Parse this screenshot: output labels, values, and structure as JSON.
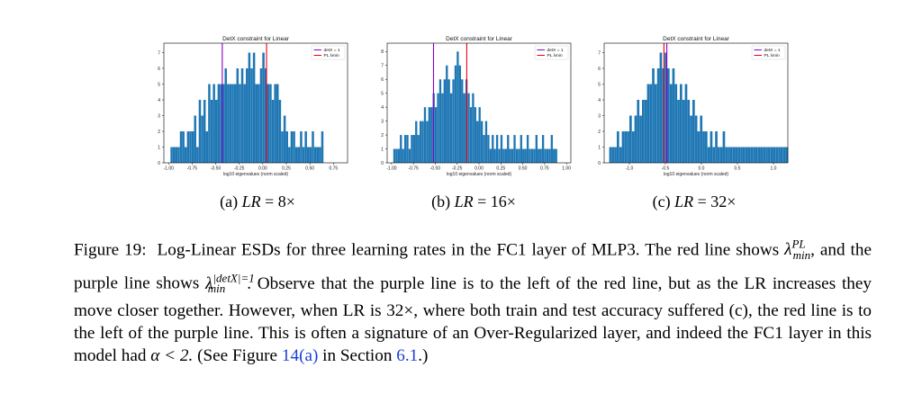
{
  "chart_data": [
    {
      "type": "bar",
      "title": "DetX constraint for Linear",
      "xlabel": "log10 eigenvalues (norm scaled)",
      "xlim": [
        -1.05,
        0.9
      ],
      "ylim": [
        0,
        7.6
      ],
      "xticks": [
        -1.0,
        -0.75,
        -0.5,
        -0.25,
        0.0,
        0.25,
        0.5,
        0.75
      ],
      "xtick_labels": [
        "-1.00",
        "-0.75",
        "-0.50",
        "-0.25",
        "0.00",
        "0.25",
        "0.50",
        "0.75"
      ],
      "yticks": [
        0,
        1,
        2,
        3,
        4,
        5,
        6,
        7
      ],
      "bin_start": -0.98,
      "bin_width": 0.025,
      "values": [
        1,
        1,
        1,
        1,
        2,
        2,
        1,
        2,
        2,
        2,
        3,
        1,
        4,
        3,
        4,
        2,
        5,
        4,
        5,
        4,
        5,
        5,
        5,
        6,
        5,
        5,
        5,
        5,
        6,
        5,
        6,
        5,
        6,
        7,
        6,
        7,
        5,
        5,
        6,
        7,
        6,
        5,
        5,
        4,
        5,
        5,
        4,
        2,
        3,
        2,
        1,
        2,
        2,
        1,
        1,
        2,
        1,
        2,
        1,
        1,
        2,
        1,
        1,
        1,
        2
      ],
      "vlines": [
        {
          "label": "detX = 1",
          "x": -0.43,
          "color": "#8b00c8"
        },
        {
          "label": "PL λmin",
          "x": 0.04,
          "color": "#e8001c"
        }
      ],
      "legend": "top-right",
      "color": "#1f77b4"
    },
    {
      "type": "bar",
      "title": "DetX constraint for Linear",
      "xlabel": "log10 eigenvalues (norm scaled)",
      "xlim": [
        -1.05,
        1.05
      ],
      "ylim": [
        0,
        8.6
      ],
      "xticks": [
        -1.0,
        -0.75,
        -0.5,
        -0.25,
        0.0,
        0.25,
        0.5,
        0.75,
        1.0
      ],
      "xtick_labels": [
        "-1.00",
        "-0.75",
        "-0.50",
        "-0.25",
        "0.00",
        "0.25",
        "0.50",
        "0.75",
        "1.00"
      ],
      "yticks": [
        0,
        1,
        2,
        3,
        4,
        5,
        6,
        7,
        8
      ],
      "bin_start": -0.98,
      "bin_width": 0.025,
      "values": [
        1,
        1,
        1,
        2,
        1,
        2,
        2,
        1,
        2,
        2,
        3,
        2,
        3,
        3,
        4,
        3,
        4,
        4,
        5,
        4,
        5,
        6,
        5,
        6,
        7,
        6,
        5,
        6,
        7,
        8,
        7,
        6,
        5,
        6,
        5,
        4,
        5,
        4,
        3,
        4,
        3,
        2,
        3,
        2,
        1,
        2,
        1,
        2,
        1,
        2,
        1,
        1,
        2,
        1,
        1,
        2,
        1,
        1,
        2,
        1,
        1,
        2,
        1,
        1,
        1,
        2,
        1,
        1,
        2,
        1,
        1,
        1,
        2,
        1,
        1
      ],
      "vlines": [
        {
          "label": "detX = 1",
          "x": -0.52,
          "color": "#8b00c8"
        },
        {
          "label": "PL λmin",
          "x": -0.14,
          "color": "#e8001c"
        }
      ],
      "legend": "top-right",
      "color": "#1f77b4"
    },
    {
      "type": "bar",
      "title": "DetX constraint for Linear",
      "xlabel": "log10 eigenvalues (norm scaled)",
      "xlim": [
        -1.35,
        1.2
      ],
      "ylim": [
        0,
        7.6
      ],
      "xticks": [
        -1.0,
        -0.5,
        0.0,
        0.5,
        1.0
      ],
      "xtick_labels": [
        "-1.0",
        "-0.5",
        "0.0",
        "0.5",
        "1.0"
      ],
      "yticks": [
        0,
        1,
        2,
        3,
        4,
        5,
        6,
        7
      ],
      "bin_start": -1.28,
      "bin_width": 0.035,
      "values": [
        1,
        1,
        1,
        2,
        1,
        2,
        2,
        2,
        3,
        2,
        3,
        4,
        3,
        4,
        4,
        5,
        5,
        6,
        5,
        6,
        7,
        6,
        7,
        6,
        5,
        6,
        5,
        4,
        5,
        4,
        5,
        4,
        3,
        4,
        3,
        2,
        3,
        2,
        2,
        1,
        2,
        1,
        2,
        1,
        1,
        2,
        1,
        1,
        1,
        1,
        1,
        1,
        1,
        1,
        1,
        1,
        1,
        1,
        1,
        1,
        1,
        1,
        1,
        1,
        1,
        1,
        1,
        1,
        1,
        1,
        1
      ],
      "vlines": [
        {
          "label": "detX = 1",
          "x": -0.48,
          "color": "#8b00c8"
        },
        {
          "label": "PL λmin",
          "x": -0.52,
          "color": "#e8001c"
        }
      ],
      "legend": "top-right",
      "color": "#1f77b4"
    }
  ],
  "subcaptions": [
    {
      "letter": "(a)",
      "var": "LR",
      "eq": "= 8×"
    },
    {
      "letter": "(b)",
      "var": "LR",
      "eq": "= 16×"
    },
    {
      "letter": "(c)",
      "var": "LR",
      "eq": "= 32×"
    }
  ],
  "caption": {
    "label": "Figure 19:",
    "part1": "Log-Linear ESDs for three learning rates in the FC1 layer of MLP3. The red line shows",
    "lambda": "λ",
    "pl_sup": "PL",
    "min_sub": "min",
    "part2": ", and the purple line shows",
    "detx_sup": "|detX|=1",
    "part3": ". Observe that the purple line is to the left of the red line, but as the LR increases they move closer together. However, when LR is 32×, where both train and test accuracy suffered (c), the red line is to the left of the purple line. This is often a signature of an Over-Regularized layer, and indeed the FC1 layer in this model had",
    "alpha": "α < 2.",
    "part4": "(See Figure",
    "fig_ref": "14(a)",
    "part5": "in Section",
    "sec_ref": "6.1",
    "part6": ".)"
  }
}
